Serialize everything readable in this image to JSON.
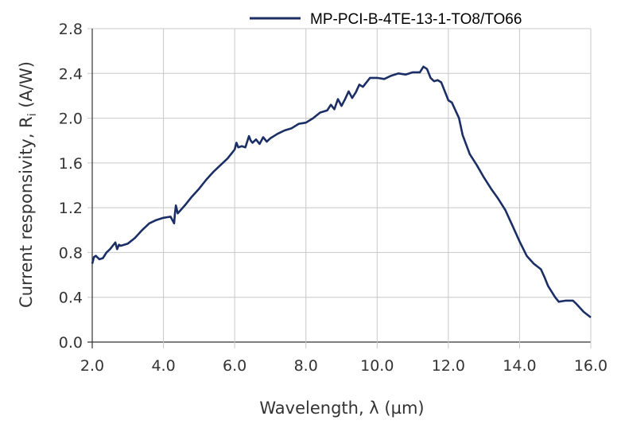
{
  "chart_data": {
    "type": "line",
    "title": "",
    "xlabel": "Wavelength, λ (µm)",
    "ylabel_main": "Current responsivity, R",
    "ylabel_sub": "i",
    "ylabel_unit": " (A/W)",
    "xlim": [
      2,
      16
    ],
    "ylim": [
      0,
      2.8
    ],
    "grid": true,
    "legend_placement": "top",
    "xticks": [
      "2.0",
      "4.0",
      "6.0",
      "8.0",
      "10.0",
      "12.0",
      "14.0",
      "16.0"
    ],
    "yticks": [
      "0.0",
      "0.4",
      "0.8",
      "1.2",
      "1.6",
      "2.0",
      "2.4",
      "2.8"
    ],
    "color": "#1b2f66",
    "series": [
      {
        "name": "MP-PCI-B-4TE-13-1-TO8/TO66",
        "x": [
          2.0,
          2.05,
          2.1,
          2.2,
          2.3,
          2.4,
          2.5,
          2.6,
          2.65,
          2.7,
          2.75,
          2.8,
          3.0,
          3.2,
          3.4,
          3.6,
          3.8,
          4.0,
          4.2,
          4.3,
          4.32,
          4.35,
          4.4,
          4.6,
          4.8,
          5.0,
          5.2,
          5.4,
          5.6,
          5.8,
          5.9,
          6.0,
          6.05,
          6.1,
          6.2,
          6.3,
          6.4,
          6.45,
          6.5,
          6.6,
          6.7,
          6.8,
          6.9,
          7.0,
          7.2,
          7.4,
          7.6,
          7.8,
          8.0,
          8.2,
          8.4,
          8.6,
          8.7,
          8.8,
          8.9,
          9.0,
          9.1,
          9.2,
          9.3,
          9.4,
          9.5,
          9.6,
          9.8,
          10.0,
          10.2,
          10.4,
          10.6,
          10.8,
          11.0,
          11.2,
          11.3,
          11.4,
          11.5,
          11.6,
          11.7,
          11.8,
          11.9,
          12.0,
          12.1,
          12.3,
          12.4,
          12.6,
          12.8,
          13.0,
          13.2,
          13.4,
          13.6,
          13.8,
          14.0,
          14.2,
          14.4,
          14.6,
          14.7,
          14.8,
          15.0,
          15.1,
          15.3,
          15.5,
          15.6,
          15.8,
          16.0
        ],
        "y": [
          0.7,
          0.76,
          0.77,
          0.74,
          0.75,
          0.8,
          0.83,
          0.87,
          0.89,
          0.83,
          0.87,
          0.86,
          0.88,
          0.93,
          1.0,
          1.06,
          1.09,
          1.11,
          1.12,
          1.06,
          1.14,
          1.22,
          1.15,
          1.22,
          1.3,
          1.37,
          1.45,
          1.52,
          1.58,
          1.64,
          1.68,
          1.72,
          1.78,
          1.74,
          1.75,
          1.74,
          1.84,
          1.8,
          1.78,
          1.81,
          1.77,
          1.83,
          1.79,
          1.82,
          1.86,
          1.89,
          1.91,
          1.95,
          1.96,
          2.0,
          2.05,
          2.07,
          2.12,
          2.08,
          2.17,
          2.11,
          2.17,
          2.24,
          2.18,
          2.23,
          2.3,
          2.28,
          2.36,
          2.36,
          2.35,
          2.38,
          2.4,
          2.39,
          2.41,
          2.41,
          2.46,
          2.44,
          2.36,
          2.33,
          2.34,
          2.32,
          2.24,
          2.16,
          2.14,
          2.0,
          1.85,
          1.68,
          1.58,
          1.47,
          1.37,
          1.28,
          1.18,
          1.04,
          0.9,
          0.77,
          0.7,
          0.65,
          0.58,
          0.5,
          0.4,
          0.36,
          0.37,
          0.37,
          0.34,
          0.27,
          0.22
        ]
      }
    ]
  }
}
